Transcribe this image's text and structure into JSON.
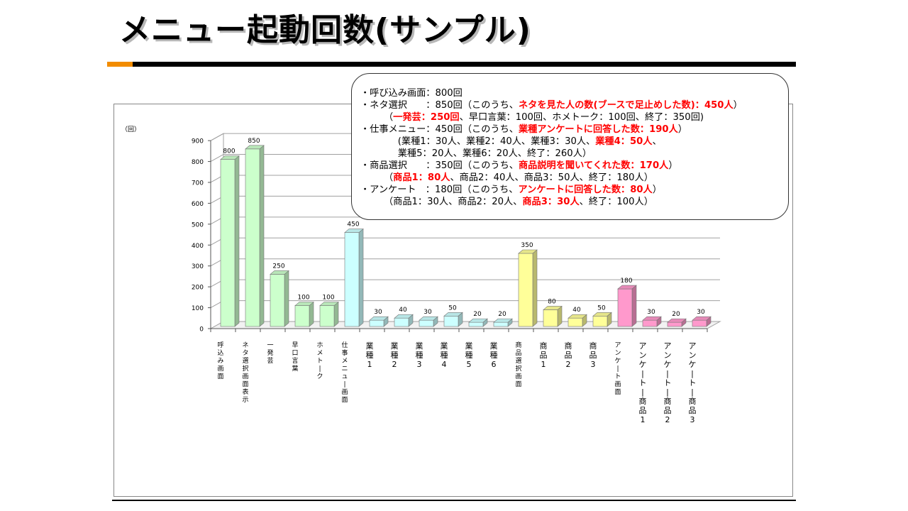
{
  "slide": {
    "title": "メニュー起動回数(サンプル)"
  },
  "colors": {
    "green": "#ccffcc",
    "cyan": "#ccffff",
    "yellow": "#ffff99",
    "pink": "#ff99cc",
    "grid": "#a0a0a0",
    "accent_red": "#ff0000",
    "rule_orange": "#f28c00"
  },
  "chart_data": {
    "type": "bar",
    "y_unit_label": "（回）",
    "ylim": [
      0,
      900
    ],
    "yticks": [
      0,
      100,
      200,
      300,
      400,
      500,
      600,
      700,
      800,
      900
    ],
    "grid": true,
    "bars_3d": true,
    "categories": [
      "呼込み画面",
      "ネタ選択画面表示",
      "一発芸",
      "早口言葉",
      "ホメトーク",
      "仕事メニュー画面",
      "業種1",
      "業種2",
      "業種3",
      "業種4",
      "業種5",
      "業種6",
      "商品選択画面",
      "商品1",
      "商品2",
      "商品3",
      "アンケート画面",
      "アンケートー商品1",
      "アンケートー商品2",
      "アンケートー商品3"
    ],
    "values": [
      800,
      850,
      250,
      100,
      100,
      450,
      30,
      40,
      30,
      50,
      20,
      20,
      350,
      80,
      40,
      50,
      180,
      30,
      20,
      30
    ],
    "color_groups": [
      "green",
      "green",
      "green",
      "green",
      "green",
      "cyan",
      "cyan",
      "cyan",
      "cyan",
      "cyan",
      "cyan",
      "cyan",
      "yellow",
      "yellow",
      "yellow",
      "yellow",
      "pink",
      "pink",
      "pink",
      "pink"
    ]
  },
  "callout": {
    "lines": [
      [
        {
          "t": "・呼び込み画面：800回"
        }
      ],
      [
        {
          "t": "・ネタ選択　　：850回（このうち、"
        },
        {
          "t": "ネタを見た人の数(ブースで足止めした数)：450人",
          "red": true
        },
        {
          "t": "）"
        }
      ],
      [
        {
          "t": "　　　（"
        },
        {
          "t": "一発芸：250回",
          "red": true
        },
        {
          "t": "、早口言葉：100回、ホメトーク：100回、終了：350回)"
        }
      ],
      [
        {
          "t": "・仕事メニュー：450回（このうち、"
        },
        {
          "t": "業種アンケートに回答した数：190人",
          "red": true
        },
        {
          "t": "）"
        }
      ],
      [
        {
          "t": "　　　　(業種1：30人、業種2：40人、業種3：30人、"
        },
        {
          "t": "業種4：50人",
          "red": true
        },
        {
          "t": "、"
        }
      ],
      [
        {
          "t": "　　　　業種5：20人、業種6：20人、終了：260人）"
        }
      ],
      [
        {
          "t": "・商品選択　　：350回（このうち、"
        },
        {
          "t": "商品説明を聞いてくれた数：170人",
          "red": true
        },
        {
          "t": "）"
        }
      ],
      [
        {
          "t": "　　　（"
        },
        {
          "t": "商品1：80人",
          "red": true
        },
        {
          "t": "、商品2：40人、商品3：50人、終了：180人）"
        }
      ],
      [
        {
          "t": "・アンケート　：180回（このうち、"
        },
        {
          "t": "アンケートに回答した数：80人",
          "red": true
        },
        {
          "t": "）"
        }
      ],
      [
        {
          "t": "　　　（商品1：30人、商品2：20人、"
        },
        {
          "t": "商品3：30人",
          "red": true
        },
        {
          "t": "、終了：100人）"
        }
      ]
    ]
  }
}
